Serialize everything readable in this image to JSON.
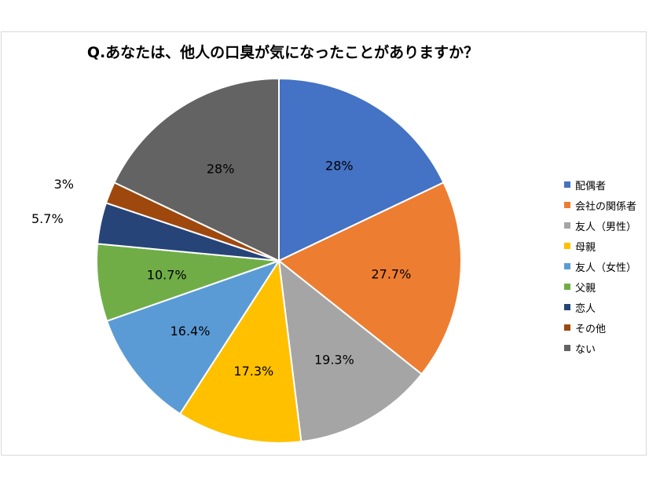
{
  "chart_data": {
    "type": "pie",
    "title": "Q.あなたは、他人の口臭が気になったことがありますか？",
    "labels": [
      "配偶者",
      "会社の関係者",
      "友人（男性）",
      "母親",
      "友人（女性）",
      "父親",
      "恋人",
      "その他",
      "ない"
    ],
    "values": [
      28,
      27.7,
      19.3,
      17.3,
      16.4,
      10.7,
      5.7,
      3,
      28
    ],
    "data_labels": [
      "28%",
      "27.7%",
      "19.3%",
      "17.3%",
      "16.4%",
      "10.7%",
      "5.7%",
      "3%",
      "28%"
    ],
    "colors": [
      "#4472c4",
      "#ed7d31",
      "#a5a5a5",
      "#ffc000",
      "#5b9bd5",
      "#70ad47",
      "#264478",
      "#9e480e",
      "#636363"
    ],
    "legend_position": "right",
    "start_angle": "top, clockwise"
  }
}
